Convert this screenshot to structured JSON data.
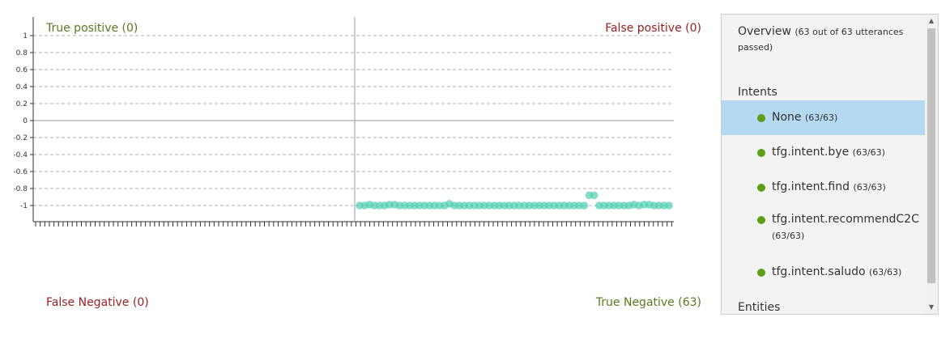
{
  "quadrants": {
    "true_positive": "True positive (0)",
    "false_positive": "False positive (0)",
    "false_negative": "False Negative (0)",
    "true_negative": "True Negative (63)"
  },
  "colors": {
    "positive_label": "#5a7a1e",
    "negative_label": "#9a1e1e",
    "points": "#4fcfb0",
    "selected_bg": "#b3daf0",
    "status_dot": "#5c9e1a"
  },
  "chart_data": {
    "type": "scatter",
    "yticks": [
      "1",
      "0.8",
      "0.6",
      "0.4",
      "0.2",
      "0",
      "-0.2",
      "-0.4",
      "-0.6",
      "-0.8",
      "-1"
    ],
    "ylim": [
      -1.1,
      1.1
    ],
    "grid": true,
    "points": [
      {
        "x": 1,
        "y": -1
      },
      {
        "x": 2,
        "y": -1
      },
      {
        "x": 3,
        "y": -0.99
      },
      {
        "x": 4,
        "y": -1
      },
      {
        "x": 5,
        "y": -1
      },
      {
        "x": 6,
        "y": -1
      },
      {
        "x": 7,
        "y": -0.99
      },
      {
        "x": 8,
        "y": -0.99
      },
      {
        "x": 9,
        "y": -1
      },
      {
        "x": 10,
        "y": -1
      },
      {
        "x": 11,
        "y": -1
      },
      {
        "x": 12,
        "y": -1
      },
      {
        "x": 13,
        "y": -1
      },
      {
        "x": 14,
        "y": -1
      },
      {
        "x": 15,
        "y": -1
      },
      {
        "x": 16,
        "y": -1
      },
      {
        "x": 17,
        "y": -1
      },
      {
        "x": 18,
        "y": -1
      },
      {
        "x": 19,
        "y": -0.98
      },
      {
        "x": 20,
        "y": -1
      },
      {
        "x": 21,
        "y": -1
      },
      {
        "x": 22,
        "y": -1
      },
      {
        "x": 23,
        "y": -1
      },
      {
        "x": 24,
        "y": -1
      },
      {
        "x": 25,
        "y": -1
      },
      {
        "x": 26,
        "y": -1
      },
      {
        "x": 27,
        "y": -1
      },
      {
        "x": 28,
        "y": -1
      },
      {
        "x": 29,
        "y": -1
      },
      {
        "x": 30,
        "y": -1
      },
      {
        "x": 31,
        "y": -1
      },
      {
        "x": 32,
        "y": -1
      },
      {
        "x": 33,
        "y": -1
      },
      {
        "x": 34,
        "y": -1
      },
      {
        "x": 35,
        "y": -1
      },
      {
        "x": 36,
        "y": -1
      },
      {
        "x": 37,
        "y": -1
      },
      {
        "x": 38,
        "y": -1
      },
      {
        "x": 39,
        "y": -1
      },
      {
        "x": 40,
        "y": -1
      },
      {
        "x": 41,
        "y": -1
      },
      {
        "x": 42,
        "y": -1
      },
      {
        "x": 43,
        "y": -1
      },
      {
        "x": 44,
        "y": -1
      },
      {
        "x": 45,
        "y": -1
      },
      {
        "x": 46,
        "y": -1
      },
      {
        "x": 47,
        "y": -0.88
      },
      {
        "x": 48,
        "y": -0.88
      },
      {
        "x": 49,
        "y": -1
      },
      {
        "x": 50,
        "y": -1
      },
      {
        "x": 51,
        "y": -1
      },
      {
        "x": 52,
        "y": -1
      },
      {
        "x": 53,
        "y": -1
      },
      {
        "x": 54,
        "y": -1
      },
      {
        "x": 55,
        "y": -1
      },
      {
        "x": 56,
        "y": -0.99
      },
      {
        "x": 57,
        "y": -1
      },
      {
        "x": 58,
        "y": -0.99
      },
      {
        "x": 59,
        "y": -0.99
      },
      {
        "x": 60,
        "y": -1
      },
      {
        "x": 61,
        "y": -1
      },
      {
        "x": 62,
        "y": -1
      },
      {
        "x": 63,
        "y": -1
      }
    ]
  },
  "panel": {
    "overview_title": "Overview",
    "overview_detail": "(63 out of 63 utterances passed)",
    "intents_heading": "Intents",
    "intents": [
      {
        "name": "None",
        "count": "(63/63)",
        "selected": true
      },
      {
        "name": "tfg.intent.bye",
        "count": "(63/63)",
        "selected": false
      },
      {
        "name": "tfg.intent.find",
        "count": "(63/63)",
        "selected": false
      },
      {
        "name": "tfg.intent.recommendC2C",
        "count": "(63/63)",
        "selected": false
      },
      {
        "name": "tfg.intent.saludo",
        "count": "(63/63)",
        "selected": false
      }
    ],
    "entities_heading": "Entities",
    "scroll_up_icon": "triangle-up",
    "scroll_down_icon": "triangle-down"
  }
}
